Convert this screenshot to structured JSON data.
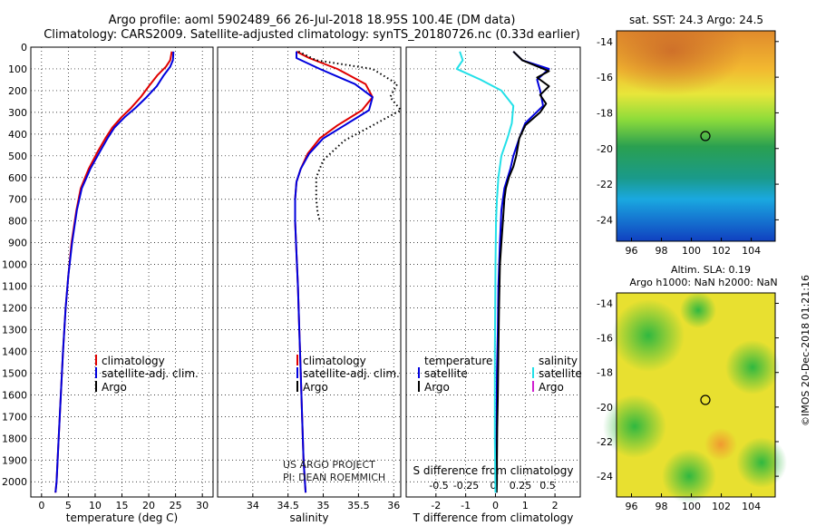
{
  "header": {
    "line1": "Argo profile: aoml 5902489_66 26-Jul-2018 18.95S 100.4E (DM data)",
    "line2": "Climatology: CARS2009. Satellite-adjusted climatology: synTS_20180726.nc (0.33d earlier)"
  },
  "colors": {
    "climatology": "#e00000",
    "satellite": "#0000dd",
    "argo": "#000000",
    "salt_sat": "#22e0e8",
    "salt_argo": "#d020d0"
  },
  "depth_ticks": [
    0,
    100,
    200,
    300,
    400,
    500,
    600,
    700,
    800,
    900,
    1000,
    1100,
    1200,
    1300,
    1400,
    1500,
    1600,
    1700,
    1800,
    1900,
    2000
  ],
  "chart_data": [
    {
      "type": "line",
      "name": "temperature-profile",
      "xlabel": "temperature (deg C)",
      "xlim": [
        -2,
        32
      ],
      "ylim": [
        2070,
        0
      ],
      "xticks": [
        0,
        5,
        10,
        15,
        20,
        25,
        30
      ],
      "legend": [
        "climatology",
        "satellite-adj. clim.",
        "Argo"
      ],
      "series": [
        {
          "name": "climatology",
          "color": "#e00000",
          "x": [
            24.3,
            24.0,
            23.2,
            21.6,
            20.0,
            18.5,
            16.7,
            15.0,
            13.2,
            11.9,
            10.5,
            8.8,
            7.3,
            6.5,
            5.6,
            5.0,
            4.5,
            4.0,
            3.6,
            3.2,
            2.8,
            2.6
          ],
          "y": [
            20,
            60,
            90,
            130,
            180,
            230,
            280,
            320,
            370,
            420,
            480,
            560,
            650,
            750,
            900,
            1050,
            1200,
            1400,
            1600,
            1800,
            2000,
            2050
          ]
        },
        {
          "name": "satellite-adj. clim.",
          "color": "#0000dd",
          "x": [
            24.6,
            24.5,
            24.0,
            22.8,
            21.5,
            19.6,
            17.5,
            15.6,
            13.6,
            12.3,
            10.9,
            9.1,
            7.5,
            6.6,
            5.7,
            5.0,
            4.5,
            4.0,
            3.6,
            3.2,
            2.8,
            2.6
          ],
          "y": [
            20,
            60,
            90,
            130,
            180,
            230,
            280,
            320,
            370,
            420,
            480,
            560,
            650,
            750,
            900,
            1050,
            1200,
            1400,
            1600,
            1800,
            2000,
            2050
          ]
        }
      ]
    },
    {
      "type": "line",
      "name": "salinity-profile",
      "xlabel": "salinity",
      "xlim": [
        33.5,
        36.1
      ],
      "ylim": [
        2070,
        0
      ],
      "xticks": [
        34,
        34.5,
        35,
        35.5,
        36
      ],
      "xticklabels": [
        "34",
        "34.5",
        "35",
        "35.5",
        "36"
      ],
      "legend": [
        "climatology",
        "satellite-adj. clim.",
        "Argo"
      ],
      "series": [
        {
          "name": "climatology",
          "color": "#e00000",
          "x": [
            34.62,
            34.8,
            35.2,
            35.6,
            35.7,
            35.55,
            35.2,
            34.95,
            34.78,
            34.68,
            34.62,
            34.6,
            34.6,
            34.62,
            34.64,
            34.66,
            34.68,
            34.7,
            34.72,
            34.74,
            34.75
          ],
          "y": [
            20,
            50,
            100,
            170,
            230,
            290,
            360,
            420,
            490,
            560,
            620,
            700,
            800,
            950,
            1100,
            1300,
            1500,
            1700,
            1900,
            2000,
            2050
          ]
        },
        {
          "name": "satellite-adj. clim.",
          "color": "#0000dd",
          "x": [
            34.62,
            34.62,
            34.95,
            35.45,
            35.7,
            35.65,
            35.3,
            35.0,
            34.8,
            34.68,
            34.62,
            34.6,
            34.6,
            34.62,
            34.64,
            34.66,
            34.68,
            34.7,
            34.72,
            34.74,
            34.75
          ],
          "y": [
            20,
            50,
            100,
            170,
            230,
            290,
            360,
            420,
            490,
            560,
            620,
            700,
            800,
            950,
            1100,
            1300,
            1500,
            1700,
            1900,
            2000,
            2050
          ]
        },
        {
          "name": "Argo",
          "color": "#000000",
          "dotted": true,
          "x": [
            34.65,
            34.9,
            35.7,
            36.05,
            35.95,
            36.1,
            35.7,
            35.3,
            35.0,
            34.9,
            34.9,
            34.92,
            34.95
          ],
          "y": [
            20,
            60,
            100,
            170,
            230,
            290,
            360,
            430,
            520,
            600,
            700,
            760,
            800
          ]
        }
      ]
    },
    {
      "type": "line",
      "name": "difference-profile",
      "xlabel": "T difference from climatology",
      "top_axis_label": "S difference from climatology",
      "xlim": [
        -3,
        2.85
      ],
      "ylim": [
        2070,
        0
      ],
      "xticks": [
        -2,
        -1,
        0,
        1,
        2
      ],
      "xticklabels": [
        "-2",
        "-1",
        "0",
        "1",
        "2"
      ],
      "sticks": [
        "-0.5",
        "-0.25",
        "0",
        "0.25",
        "0.5"
      ],
      "legend_temperature_title": "temperature",
      "legend_salinity_title": "salinity",
      "legend_temperature": [
        "satellite",
        "Argo"
      ],
      "legend_salinity": [
        "satellite",
        "Argo"
      ],
      "series": [
        {
          "name": "T satellite",
          "color": "#0000dd",
          "x": [
            0.6,
            0.9,
            1.8,
            1.4,
            1.5,
            1.6,
            1.0,
            0.8,
            0.6,
            0.5,
            0.3,
            0.2,
            0.15,
            0.1,
            0.08,
            0.05,
            0.04,
            0.03,
            0.02
          ],
          "y": [
            20,
            60,
            100,
            150,
            200,
            270,
            350,
            420,
            500,
            560,
            650,
            750,
            900,
            1100,
            1300,
            1500,
            1700,
            1900,
            2050
          ]
        },
        {
          "name": "T Argo",
          "color": "#000000",
          "x": [
            0.6,
            0.9,
            1.8,
            1.4,
            1.8,
            1.5,
            1.7,
            1.5,
            1.0,
            0.8,
            0.7,
            0.6,
            0.45,
            0.35,
            0.3,
            0.25,
            0.2,
            0.15,
            0.12,
            0.1,
            0.08,
            0.06,
            0.05,
            0.05,
            0.04
          ],
          "y": [
            20,
            60,
            110,
            140,
            180,
            220,
            260,
            300,
            360,
            420,
            500,
            550,
            600,
            650,
            700,
            800,
            900,
            1000,
            1200,
            1400,
            1600,
            1750,
            1900,
            2000,
            2050
          ]
        },
        {
          "name": "S satellite",
          "color": "#22e0e8",
          "x": [
            -1.2,
            -1.1,
            -1.3,
            -0.5,
            0.2,
            0.6,
            0.55,
            0.4,
            0.2,
            0.1,
            0.05,
            0.02,
            0.0,
            -0.02,
            -0.02,
            0.0
          ],
          "y": [
            20,
            60,
            100,
            150,
            200,
            270,
            350,
            420,
            500,
            600,
            700,
            800,
            1000,
            1400,
            1800,
            2050
          ]
        }
      ]
    }
  ],
  "legend_labels": {
    "climatology": "climatology",
    "satellite_adj": "satellite-adj. clim.",
    "argo": "Argo",
    "satellite": "satellite"
  },
  "credit": {
    "line1": "US ARGO PROJECT",
    "line2": "PI: DEAN ROEMMICH"
  },
  "sst_map": {
    "title": "sat. SST: 24.3 Argo: 24.5",
    "xticks": [
      "96",
      "98",
      "100",
      "102",
      "104"
    ],
    "yticks": [
      "-14",
      "-16",
      "-18",
      "-20",
      "-22",
      "-24"
    ]
  },
  "sla_map": {
    "title_line1": "Altim. SLA: 0.19",
    "title_line2": "Argo h1000: NaN h2000: NaN",
    "xticks": [
      "96",
      "98",
      "100",
      "102",
      "104"
    ],
    "yticks": [
      "-14",
      "-16",
      "-18",
      "-20",
      "-22",
      "-24"
    ]
  },
  "stamp": "©IMOS 20-Dec-2018 01:21:16"
}
